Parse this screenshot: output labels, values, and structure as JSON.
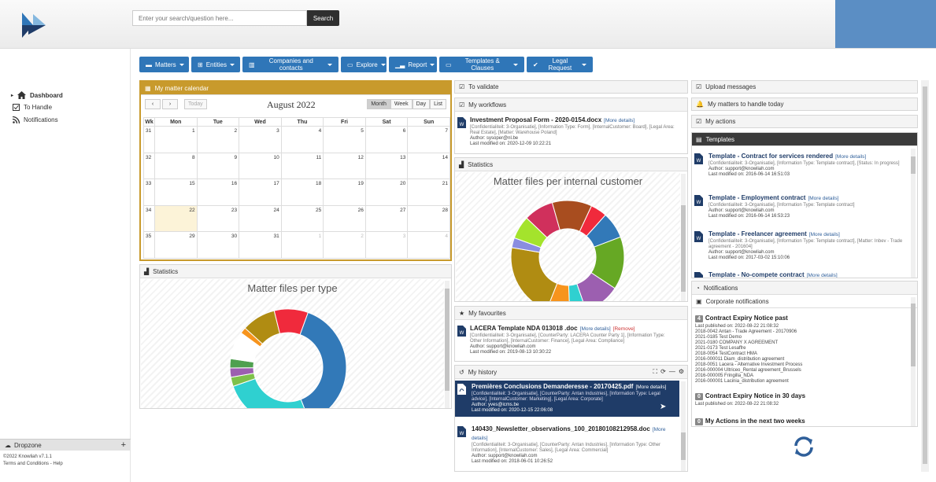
{
  "search": {
    "placeholder": "Enter your search/question here...",
    "button": "Search"
  },
  "sidebar": {
    "items": [
      {
        "label": "Dashboard",
        "icon": "home-icon"
      },
      {
        "label": "To Handle",
        "icon": "checkbox-icon"
      },
      {
        "label": "Notifications",
        "icon": "rss-icon"
      }
    ],
    "dropzone": "Dropzone",
    "copyright": "©2022 Knowliah v7.1.1",
    "terms": "Terms and Conditions - Help"
  },
  "menu": [
    "Matters",
    "Entities",
    "Companies and contacts",
    "Explore",
    "Report",
    "Templates & Clauses",
    "Legal Request"
  ],
  "calendar": {
    "header": "My matter calendar",
    "title": "August 2022",
    "today": "Today",
    "views": [
      "Month",
      "Week",
      "Day",
      "List"
    ],
    "weekday_header": "Wk",
    "days": [
      "Mon",
      "Tue",
      "Wed",
      "Thu",
      "Fri",
      "Sat",
      "Sun"
    ],
    "weeks": [
      {
        "wk": "31",
        "d": [
          "1",
          "2",
          "3",
          "4",
          "5",
          "6",
          "7"
        ]
      },
      {
        "wk": "32",
        "d": [
          "8",
          "9",
          "10",
          "11",
          "12",
          "13",
          "14"
        ]
      },
      {
        "wk": "33",
        "d": [
          "15",
          "16",
          "17",
          "18",
          "19",
          "20",
          "21"
        ]
      },
      {
        "wk": "34",
        "d": [
          "22",
          "23",
          "24",
          "25",
          "26",
          "27",
          "28"
        ]
      },
      {
        "wk": "35",
        "d": [
          "29",
          "30",
          "31",
          "1",
          "2",
          "3",
          "4"
        ]
      }
    ]
  },
  "stats_left": {
    "header": "Statistics",
    "chart_title": "Matter files per type"
  },
  "to_validate": "To validate",
  "workflows": {
    "header": "My workflows",
    "title": "Investment Proposal Form - 2020-0154.docx",
    "more": "[More details]",
    "meta": "[Confidentialiteit: 3-Organisatie], [Information Type: Form], [InternalCustomer: Board], [Legal Area: Real Estate], [Matter: Warehouse Poland]",
    "author": "Author: sysoper@nl.be",
    "modified": "Last modified on: 2020-12-09 10:22:21"
  },
  "stats_mid": {
    "header": "Statistics",
    "chart_title": "Matter files per internal customer"
  },
  "favourites": {
    "header": "My favourites",
    "title": "LACERA Template NDA 013018 .doc",
    "more": "[More details]",
    "remove": "[Remove]",
    "meta": "[Confidentialiteit: 3-Organisatie], [CounterParty: LACERA Counter Party 1], [Information Type: Other Information], [InternalCustomer: Finance], [Legal Area: Compliance]",
    "author": "Author: support@knowliah.com",
    "modified": "Last modified on: 2019-08-13 10:30:22"
  },
  "history": {
    "header": "My history",
    "items": [
      {
        "title": "Premières Conclusions Demanderesse - 20170425.pdf",
        "more": "[More details]",
        "meta": "[Confidentialiteit: 3-Organisatie], [CounterParty: Antan Industries], [Information Type: Legal advice], [InternalCustomer: Marketing], [Legal Area: Corporate]",
        "author": "Author: yves@icms.be",
        "modified": "Last modified on: 2020-12-15 22:06:08"
      },
      {
        "title": "140430_Newsletter_observations_100_20180108212958.doc",
        "more": "[More",
        "more2": "details]",
        "meta": "[Confidentialiteit: 3-Organisatie], [CounterParty: Antan Industries], [Information Type: Other Information], [InternalCustomer: Sales], [Legal Area: Commercial]",
        "author": "Author: support@knowliah.com",
        "modified": "Last modified on: 2018-06-01 10:26:52"
      }
    ]
  },
  "upload_messages": "Upload messages",
  "matters_today": "My matters to handle today",
  "my_actions": "My actions",
  "templates": {
    "header": "Templates",
    "items": [
      {
        "title": "Template - Contract for services rendered",
        "more": "[More details]",
        "meta": "[Confidentialiteit: 3-Organisatie], [Information Type: Template contract], [Status: In progress]",
        "author": "Author: support@knowliah.com",
        "modified": "Last modified on: 2016-06-14 16:51:03"
      },
      {
        "title": "Template - Employment contract",
        "more": "[More details]",
        "meta": "[Confidentialiteit: 3-Organisatie], [Information Type: Template contract]",
        "author": "Author: support@knowliah.com",
        "modified": "Last modified on: 2016-06-14 16:53:23"
      },
      {
        "title": "Template - Freelancer agreement",
        "more": "[More details]",
        "meta": "[Confidentialiteit: 3-Organisatie], [Information Type: Template contract], [Matter: Inbev - Trade agreement - 201604]",
        "author": "Author: support@knowliah.com",
        "modified": "Last modified on: 2017-03-02 15:10:06"
      },
      {
        "title": "Template - No-compete contract",
        "more": "[More details]"
      }
    ]
  },
  "notifications": {
    "header": "Notifications",
    "sub": "Corporate notifications",
    "items": [
      {
        "badge": "4",
        "title": "Contract Expiry Notice past",
        "published": "Last published on: 2022-08-22 21:08:32",
        "lines": [
          "2018-0042 Antan - Trade Agreement - 20170906",
          "2021-0185 Test Demo",
          "2021-0180 COMPANY X AGREEMENT",
          "2021-0173 Test Lesaffre",
          "2018-0054 TestContract HMA",
          "2016-000011 Diam_distribution agreement",
          "2018-0051 Lacera - Alternative Investment Process",
          "2016-000004 Ultriceo_Rental agreement_Brussels",
          "2016-000005 Fringilla_NDA",
          "2016-000001 Lacinia_distribution agreement"
        ]
      },
      {
        "badge": "0",
        "title": "Contract Expiry Notice in 30 days",
        "published": "Last published on: 2022-08-22 21:08:32"
      },
      {
        "badge": "0",
        "title": "My Actions in the next two weeks"
      }
    ]
  },
  "chart_data": [
    {
      "type": "pie",
      "title": "Matter files per type",
      "values": [
        45,
        30,
        3,
        3,
        3,
        9,
        2,
        11,
        11
      ],
      "colors": [
        "#3279b8",
        "#2fd0d0",
        "#7ec14a",
        "#9c5fb0",
        "#4fa04f",
        "#ffffff",
        "#f7941d",
        "#b08c12",
        "#f02a3c"
      ]
    },
    {
      "type": "pie",
      "title": "Matter files per internal customer",
      "values": [
        5,
        8,
        16,
        11,
        5,
        7,
        23,
        3,
        7,
        9,
        12
      ],
      "colors": [
        "#f02a3c",
        "#3279b8",
        "#66a824",
        "#9c5fb0",
        "#2fd0d0",
        "#f7941d",
        "#b08c12",
        "#8a8de0",
        "#a4e32c",
        "#d0305c",
        "#a84d1f"
      ]
    }
  ]
}
